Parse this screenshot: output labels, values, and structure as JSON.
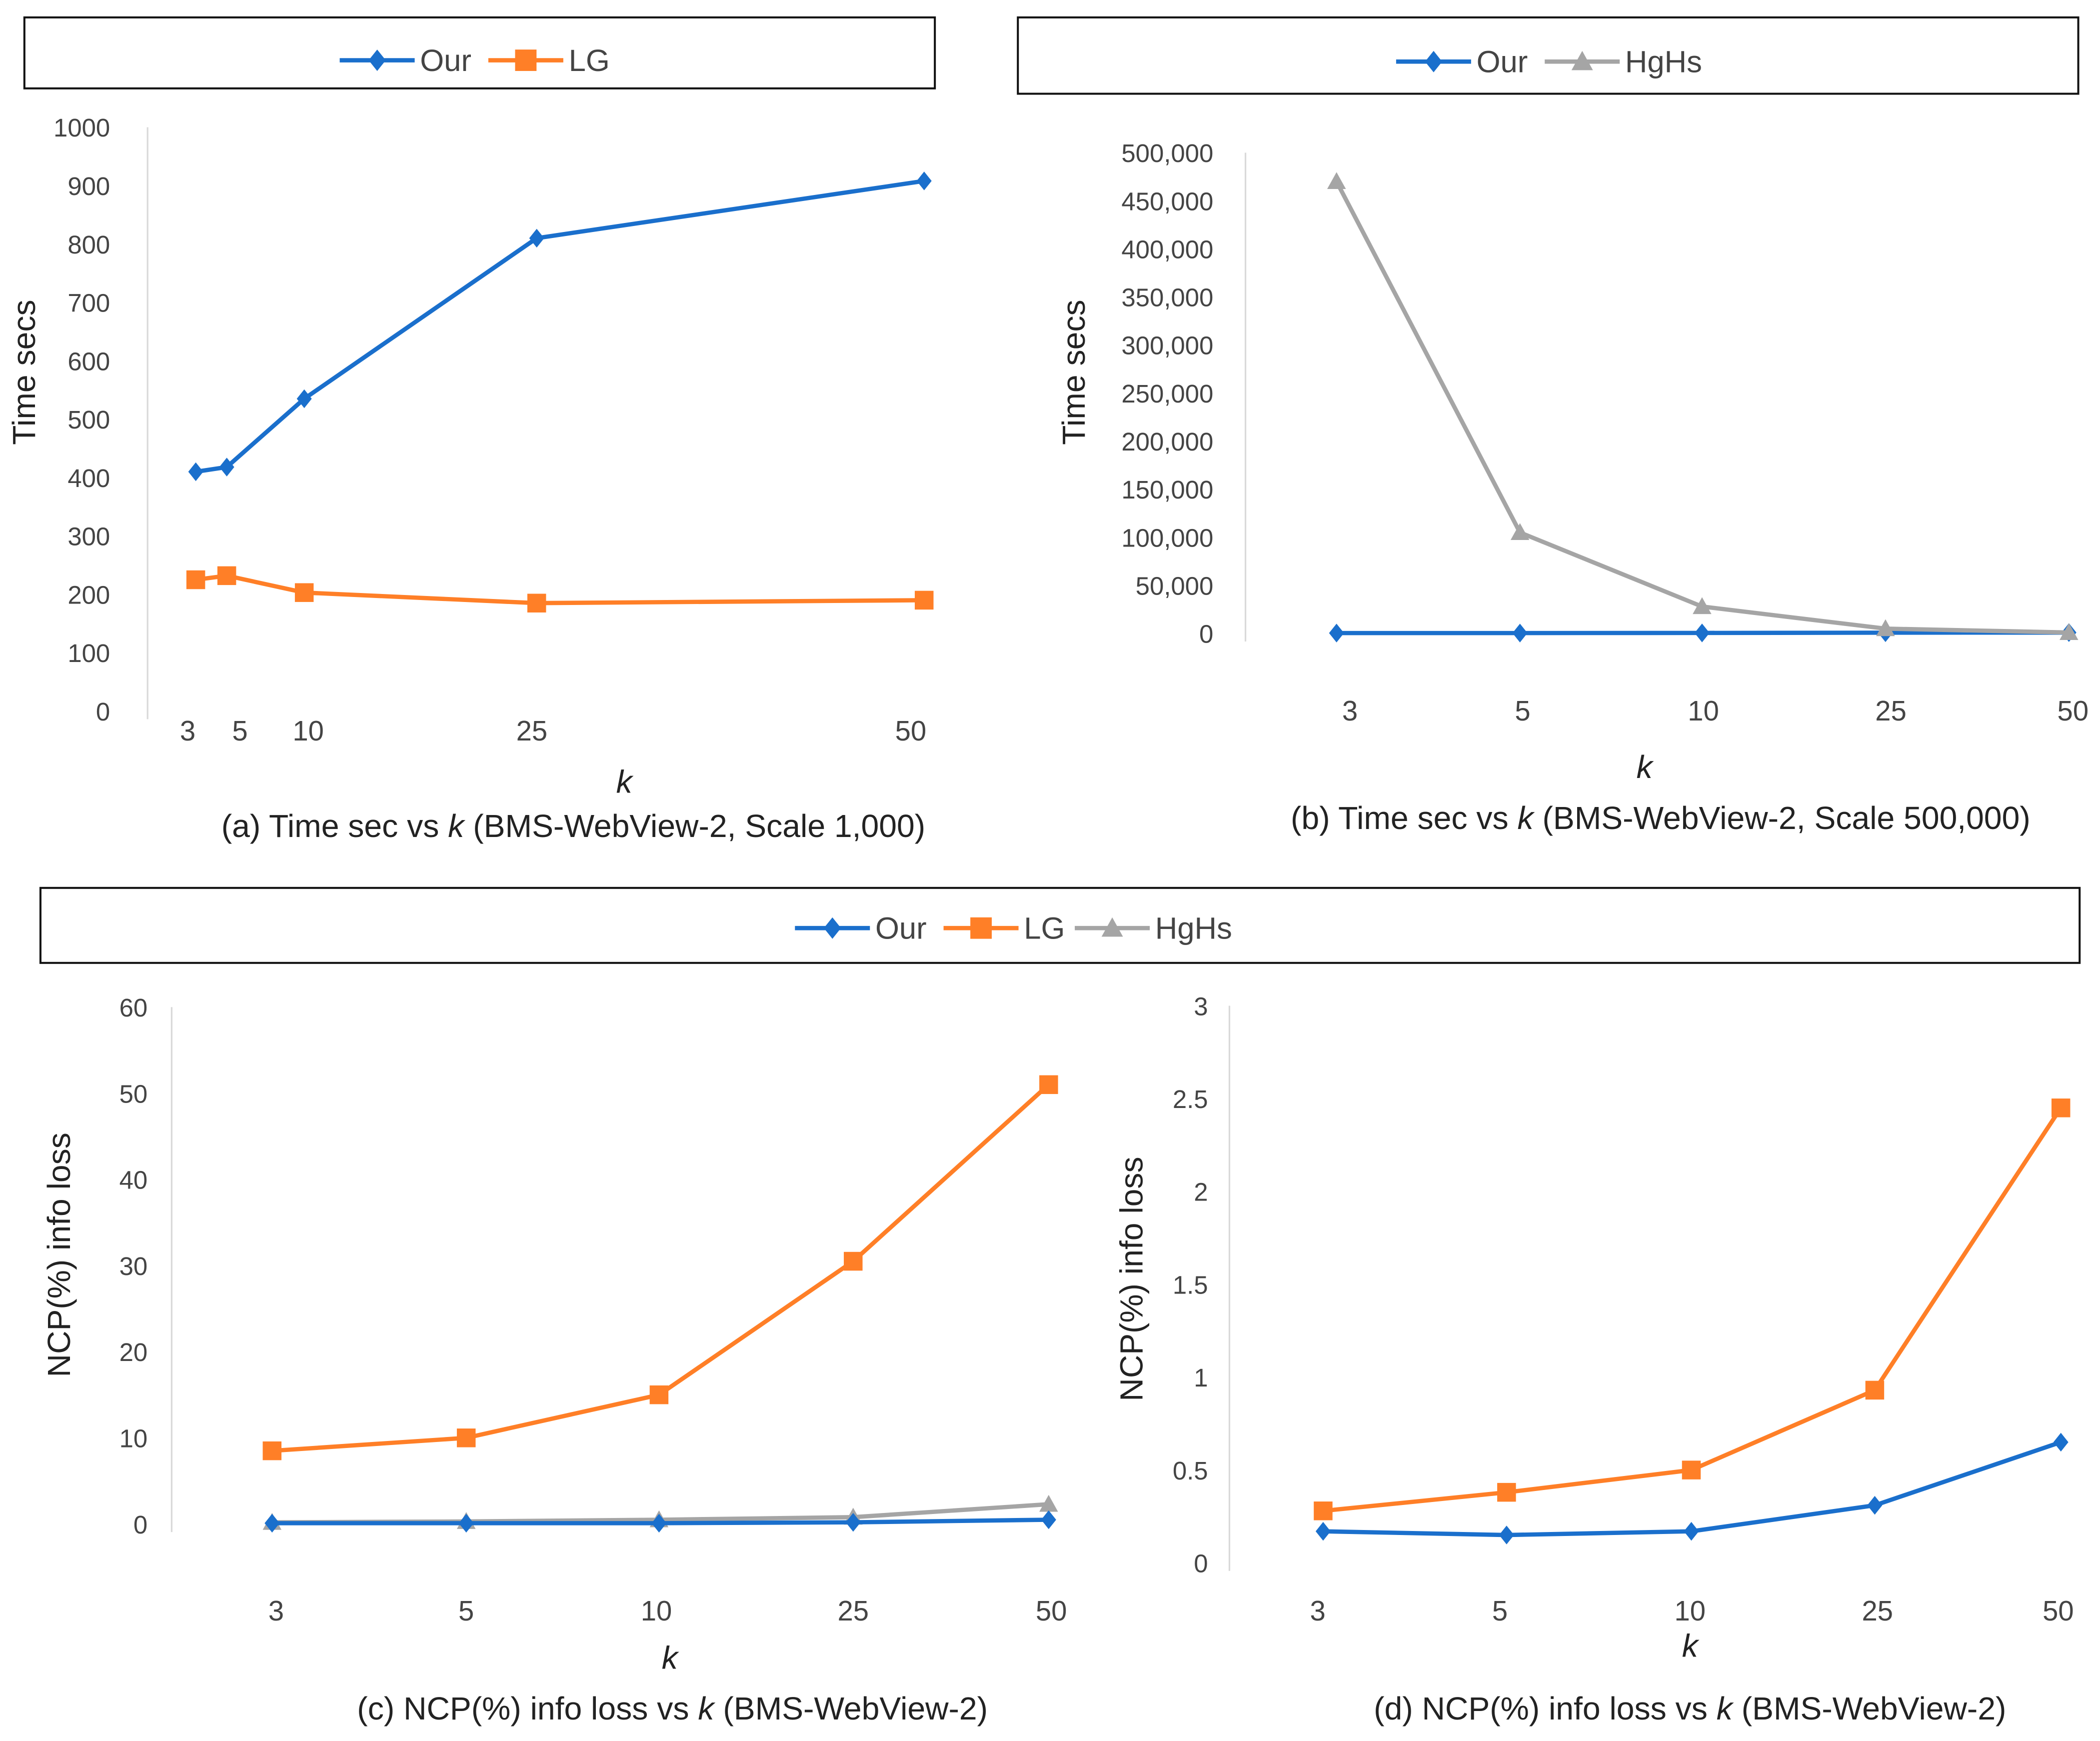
{
  "colors": {
    "Our": "#1a6fcc",
    "LG": "#ff7f27",
    "HgHs": "#a5a5a5"
  },
  "chart_data": [
    {
      "id": "a",
      "type": "line",
      "x_scale": "numeric",
      "legend": [
        "Our",
        "LG"
      ],
      "legend_placement": "top",
      "x": [
        3,
        5,
        10,
        25,
        50
      ],
      "xtick_labels": [
        "3",
        "5",
        "10",
        "25",
        "50"
      ],
      "xlabel": "k",
      "ylabel": "Time secs",
      "ylim": [
        0,
        1000
      ],
      "ytick_labels": [
        "0",
        "100",
        "200",
        "300",
        "400",
        "500",
        "600",
        "700",
        "800",
        "900",
        "1000"
      ],
      "yticks": [
        0,
        100,
        200,
        300,
        400,
        500,
        600,
        700,
        800,
        900,
        1000
      ],
      "grid": false,
      "series": [
        {
          "name": "Our",
          "marker": "diamond",
          "values": [
            410,
            418,
            535,
            810,
            908
          ]
        },
        {
          "name": "LG",
          "marker": "square",
          "values": [
            225,
            232,
            203,
            185,
            190
          ]
        }
      ],
      "caption_parts": [
        "(a) Time sec vs ",
        "k",
        " (BMS-WebView-2, Scale 1,000)"
      ]
    },
    {
      "id": "b",
      "type": "line",
      "x_scale": "category",
      "legend": [
        "Our",
        "HgHs"
      ],
      "legend_placement": "top",
      "x": [
        3,
        5,
        10,
        25,
        50
      ],
      "xtick_labels": [
        "3",
        "5",
        "10",
        "25",
        "50"
      ],
      "xlabel": "k",
      "ylabel": "Time secs",
      "ylim": [
        0,
        500000
      ],
      "ytick_labels": [
        "0",
        "50,000",
        "100,000",
        "150,000",
        "200,000",
        "250,000",
        "300,000",
        "350,000",
        "400,000",
        "450,000",
        "500,000"
      ],
      "yticks": [
        0,
        50000,
        100000,
        150000,
        200000,
        250000,
        300000,
        350000,
        400000,
        450000,
        500000
      ],
      "grid": false,
      "series": [
        {
          "name": "Our",
          "marker": "diamond",
          "values": [
            410,
            418,
            535,
            810,
            908
          ]
        },
        {
          "name": "HgHs",
          "marker": "triangle",
          "values": [
            470000,
            105000,
            28000,
            5000,
            1000
          ]
        }
      ],
      "caption_parts": [
        "(b) Time sec vs ",
        "k",
        " (BMS-WebView-2, Scale 500,000)"
      ]
    },
    {
      "id": "c",
      "type": "line",
      "x_scale": "category",
      "legend": [
        "Our",
        "LG",
        "HgHs"
      ],
      "legend_placement": "top (shared with d)",
      "x": [
        3,
        5,
        10,
        25,
        50
      ],
      "xtick_labels": [
        "3",
        "5",
        "10",
        "25",
        "50"
      ],
      "xlabel": "k",
      "ylabel": "NCP(%) info loss",
      "ylim": [
        0,
        60
      ],
      "ytick_labels": [
        "0",
        "10",
        "20",
        "30",
        "40",
        "50",
        "60"
      ],
      "yticks": [
        0,
        10,
        20,
        30,
        40,
        50,
        60
      ],
      "grid": false,
      "series": [
        {
          "name": "HgHs",
          "marker": "triangle",
          "values": [
            0.2,
            0.3,
            0.5,
            0.8,
            2.3
          ]
        },
        {
          "name": "LG",
          "marker": "square",
          "values": [
            8.5,
            10,
            15,
            30.5,
            51
          ]
        },
        {
          "name": "Our",
          "marker": "diamond",
          "values": [
            0.1,
            0.1,
            0.1,
            0.2,
            0.5
          ]
        }
      ],
      "caption_parts": [
        "(c) NCP(%) info loss vs ",
        "k",
        " (BMS-WebView-2)"
      ]
    },
    {
      "id": "d",
      "type": "line",
      "x_scale": "category",
      "legend": [
        "Our",
        "LG"
      ],
      "legend_placement": "top (shared with c)",
      "x": [
        3,
        5,
        10,
        25,
        50
      ],
      "xtick_labels": [
        "3",
        "5",
        "10",
        "25",
        "50"
      ],
      "xlabel": "k",
      "ylabel": "NCP(%) info loss",
      "ylim": [
        0,
        3
      ],
      "ytick_labels": [
        "0",
        "0.5",
        "1",
        "1.5",
        "2",
        "2.5",
        "3"
      ],
      "yticks": [
        0,
        0.5,
        1,
        1.5,
        2,
        2.5,
        3
      ],
      "grid": false,
      "series": [
        {
          "name": "LG",
          "marker": "square",
          "values": [
            0.28,
            0.38,
            0.5,
            0.93,
            2.45
          ]
        },
        {
          "name": "Our",
          "marker": "diamond",
          "values": [
            0.17,
            0.15,
            0.17,
            0.31,
            0.65
          ]
        }
      ],
      "caption_parts": [
        "(d) NCP(%) info loss vs ",
        "k",
        " (BMS-WebView-2)"
      ]
    }
  ],
  "legends": [
    {
      "id": "legend-a",
      "items": [
        "Our",
        "LG"
      ]
    },
    {
      "id": "legend-b",
      "items": [
        "Our",
        "HgHs"
      ]
    },
    {
      "id": "legend-cd",
      "items": [
        "Our",
        "LG",
        "HgHs"
      ]
    }
  ]
}
